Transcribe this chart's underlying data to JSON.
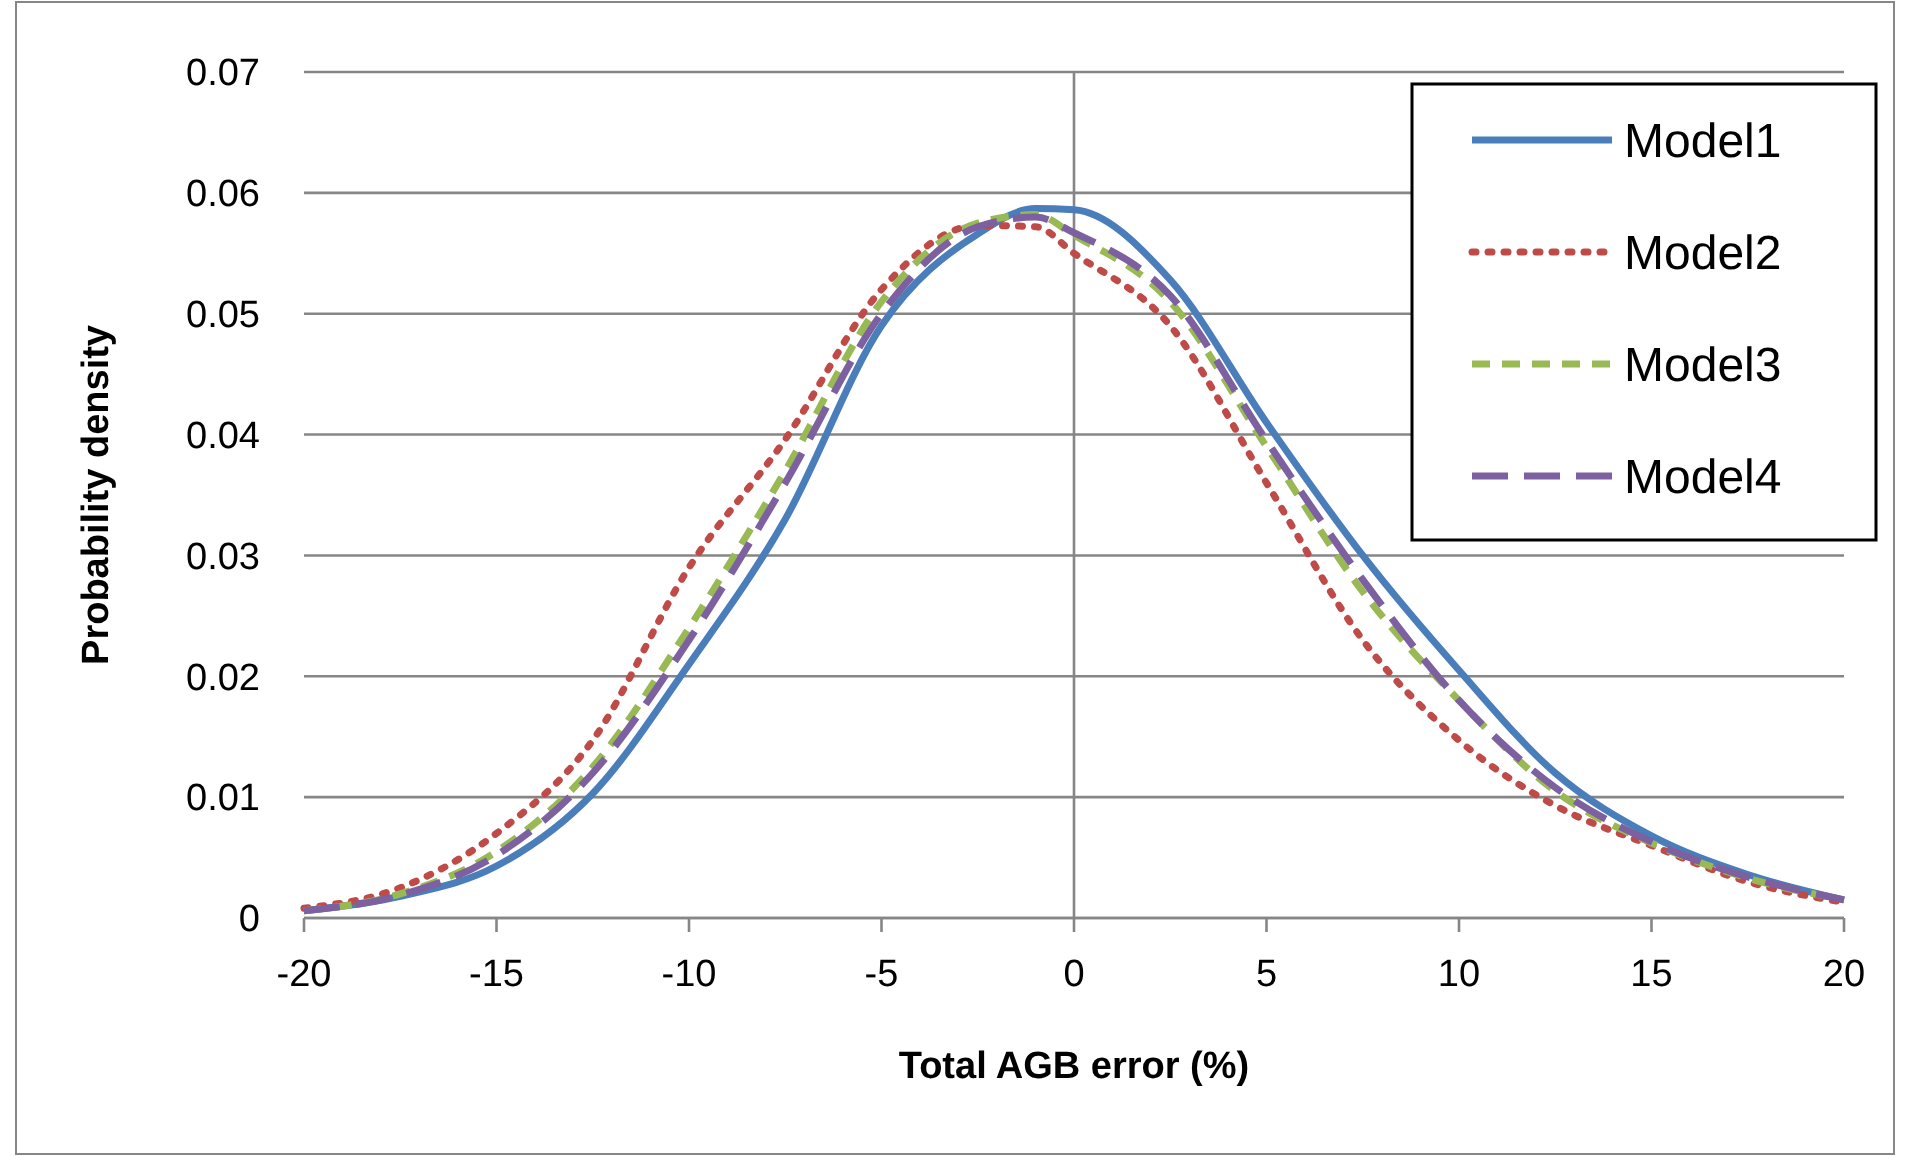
{
  "chart_data": {
    "type": "line",
    "xlabel": "Total AGB error (%)",
    "ylabel": "Probability density",
    "x": [
      -20,
      -17.5,
      -15,
      -12.5,
      -10,
      -7.5,
      -5,
      -2.5,
      -1,
      0,
      2.5,
      5,
      7.5,
      10,
      12.5,
      15,
      17.5,
      20
    ],
    "xlim": [
      -20,
      20
    ],
    "xticks": [
      -20,
      -15,
      -10,
      -5,
      0,
      5,
      10,
      15,
      20
    ],
    "ylim": [
      0,
      0.07
    ],
    "yticks": [
      0,
      0.01,
      0.02,
      0.03,
      0.04,
      0.05,
      0.06,
      0.07
    ],
    "grid": "y",
    "ref_lines": [
      {
        "axis": "x",
        "value": 0,
        "color": "#868686"
      }
    ],
    "legend": "top right",
    "marker": "none",
    "series": [
      {
        "name": "Model1",
        "color": "#4a7ebb",
        "line_style": "solid",
        "values": [
          0.0006,
          0.0018,
          0.0043,
          0.0103,
          0.021,
          0.033,
          0.049,
          0.0566,
          0.0587,
          0.0586,
          0.0528,
          0.041,
          0.03,
          0.0205,
          0.012,
          0.0068,
          0.0036,
          0.0015
        ]
      },
      {
        "name": "Model2",
        "color": "#be4b48",
        "line_style": "dotted",
        "values": [
          0.0008,
          0.0025,
          0.007,
          0.0147,
          0.029,
          0.0396,
          0.052,
          0.0573,
          0.0572,
          0.055,
          0.049,
          0.036,
          0.023,
          0.0147,
          0.0093,
          0.006,
          0.003,
          0.0013
        ]
      },
      {
        "name": "Model3",
        "color": "#98b954",
        "line_style": "dashed",
        "values": [
          0.0006,
          0.002,
          0.0055,
          0.0125,
          0.024,
          0.037,
          0.051,
          0.0575,
          0.0582,
          0.0565,
          0.051,
          0.039,
          0.027,
          0.018,
          0.0105,
          0.0062,
          0.0033,
          0.0015
        ]
      },
      {
        "name": "Model4",
        "color": "#7d60a0",
        "line_style": "longdash",
        "values": [
          0.0006,
          0.0019,
          0.0052,
          0.012,
          0.023,
          0.036,
          0.05,
          0.0572,
          0.058,
          0.0567,
          0.0515,
          0.0395,
          0.028,
          0.018,
          0.0108,
          0.0063,
          0.0034,
          0.0015
        ]
      }
    ]
  }
}
